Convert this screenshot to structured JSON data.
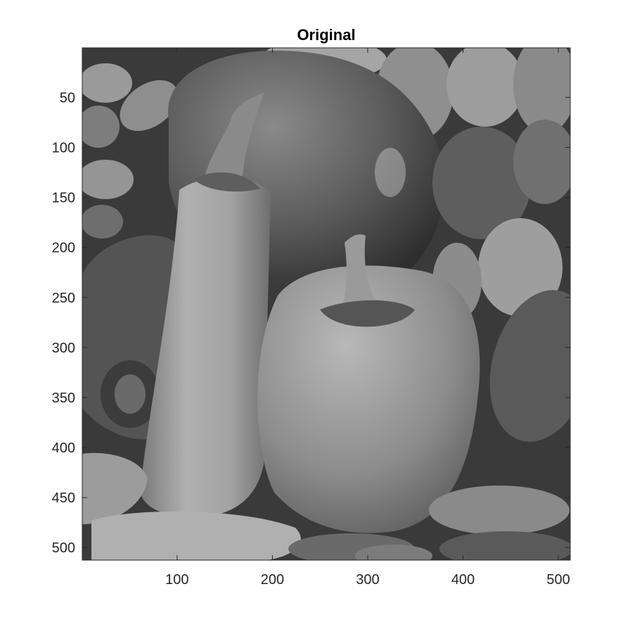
{
  "figure": {
    "title": "Original"
  },
  "axes": {
    "x_ticks": [
      100,
      200,
      300,
      400,
      500
    ],
    "y_ticks": [
      50,
      100,
      150,
      200,
      250,
      300,
      350,
      400,
      450,
      500
    ],
    "x_range": [
      0.5,
      512.5
    ],
    "y_range": [
      0.5,
      512.5
    ],
    "y_direction": "reversed"
  },
  "image": {
    "subject": "grayscale photo of bell peppers and chili peppers",
    "colormap": "gray"
  },
  "colors": {
    "axis": "#262626",
    "background": "#ffffff"
  }
}
